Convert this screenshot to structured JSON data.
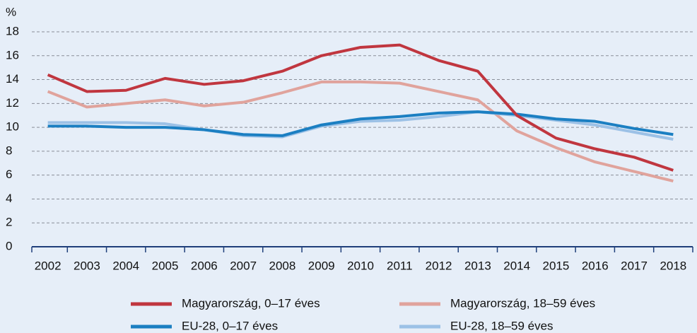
{
  "chart_data": {
    "type": "line",
    "ylabel": "%",
    "categories": [
      "2002",
      "2003",
      "2004",
      "2005",
      "2006",
      "2007",
      "2008",
      "2009",
      "2010",
      "2011",
      "2012",
      "2013",
      "2014",
      "2015",
      "2016",
      "2017",
      "2018"
    ],
    "series": [
      {
        "name": "Magyarország, 0–17 éves",
        "color": "#c0363f",
        "values": [
          14.4,
          13.0,
          13.1,
          14.1,
          13.6,
          13.9,
          14.7,
          16.0,
          16.7,
          16.9,
          15.6,
          14.7,
          11.0,
          9.1,
          8.2,
          7.5,
          6.4
        ]
      },
      {
        "name": "Magyarország, 18–59 éves",
        "color": "#e0a39c",
        "values": [
          13.0,
          11.7,
          12.0,
          12.3,
          11.8,
          12.1,
          12.9,
          13.8,
          13.8,
          13.7,
          13.0,
          12.3,
          9.7,
          8.3,
          7.1,
          6.3,
          5.5
        ]
      },
      {
        "name": "EU-28, 0–17 éves",
        "color": "#1b7fc2",
        "values": [
          10.1,
          10.1,
          10.0,
          10.0,
          9.8,
          9.4,
          9.3,
          10.2,
          10.7,
          10.9,
          11.2,
          11.3,
          11.1,
          10.7,
          10.5,
          9.9,
          9.4
        ]
      },
      {
        "name": "EU-28, 18–59 éves",
        "color": "#9cc1e6",
        "values": [
          10.4,
          10.4,
          10.4,
          10.3,
          9.8,
          9.3,
          9.2,
          10.1,
          10.5,
          10.6,
          10.9,
          11.3,
          11.0,
          10.6,
          10.2,
          9.6,
          9.0
        ]
      }
    ],
    "ylim": [
      0,
      18
    ],
    "yticks": [
      0,
      2,
      4,
      6,
      8,
      10,
      12,
      14,
      16,
      18
    ],
    "grid": true
  }
}
